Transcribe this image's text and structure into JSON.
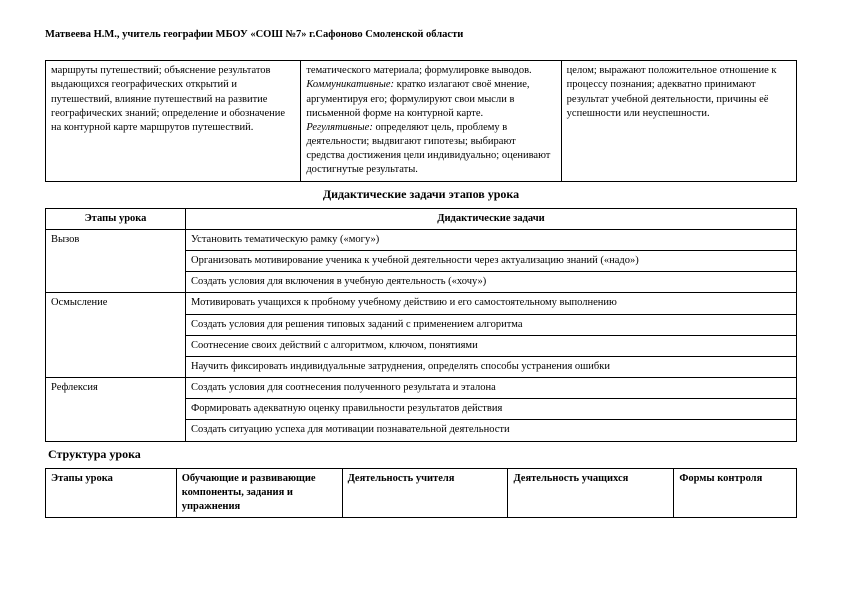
{
  "header": "Матвеева Н.М., учитель географии МБОУ «СОШ №7» г.Сафоново Смоленской области",
  "table1": {
    "col1": "маршруты путешествий; объяснение результатов выдающихся географических открытий и путешествий, влияние путешествий на развитие географических знаний; определение и обозначение на контурной карте маршрутов путешествий.",
    "col2_l1": "тематического материала; формулировке выводов.",
    "col2_komm_label": "Коммуникативные:",
    "col2_komm_text": " кратко излагают своё мнение, аргументируя его; формулируют свои мысли в письменной форме на контурной карте.",
    "col2_reg_label": "Регулятивные:",
    "col2_reg_text": " определяют цель, проблему в деятельности; выдвигают гипотезы; выбирают средства достижения цели индивидуально; оценивают достигнутые результаты.",
    "col3": "целом; выражают положительное отношение к процессу познания; адекватно принимают результат учебной деятельности, причины её успешности или неуспешности."
  },
  "section1_title": "Дидактические задачи этапов урока",
  "table2": {
    "head_stage": "Этапы урока",
    "head_tasks": "Дидактические задачи",
    "rows": [
      {
        "stage": "Вызов",
        "tasks": [
          "Установить тематическую рамку («могу»)",
          "Организовать мотивирование ученика к учебной деятельности через актуализацию знаний («надо»)",
          "Создать условия для включения в учебную деятельность («хочу»)"
        ]
      },
      {
        "stage": "Осмысление",
        "tasks": [
          "Мотивировать учащихся к пробному учебному действию и его самостоятельному выполнению",
          "Создать условия для решения типовых заданий с применением алгоритма",
          "Соотнесение своих действий с алгоритмом, ключом, понятиями",
          "Научить фиксировать индивидуальные затруднения, определять способы устранения ошибки"
        ]
      },
      {
        "stage": "Рефлексия",
        "tasks": [
          "Создать условия для соотнесения полученного результата  и эталона",
          "Формировать адекватную оценку правильности результатов действия",
          "Создать  ситуацию успеха для мотивации познавательной деятельности"
        ]
      }
    ]
  },
  "section2_title": "Структура  урока",
  "table3": {
    "h1": "Этапы урока",
    "h2": "Обучающие и развивающие компоненты, задания и упражнения",
    "h3": "Деятельность учителя",
    "h4": "Деятельность учащихся",
    "h5": "Формы контроля"
  }
}
